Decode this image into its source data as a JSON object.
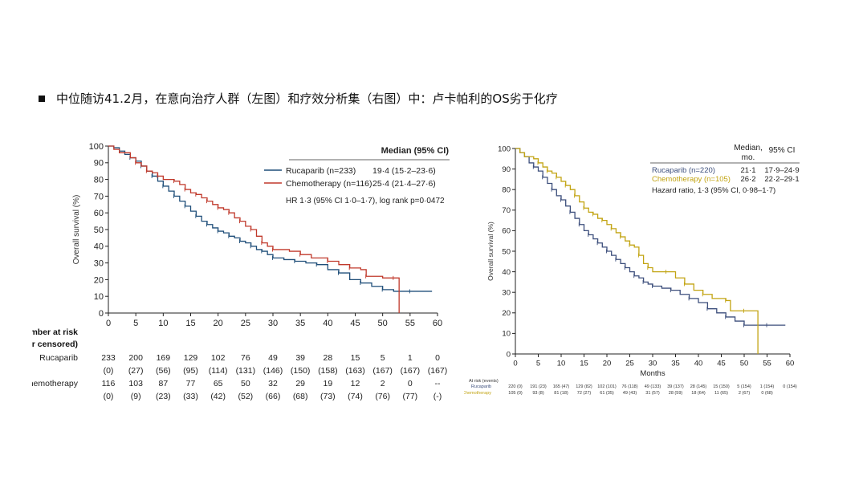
{
  "slide": {
    "title": "中位随访41.2月，在意向治疗人群（左图）和疗效分析集（右图）中：卢卡帕利的OS劣于化疗"
  },
  "chart_data": [
    {
      "type": "line",
      "subtype": "kaplan-meier",
      "panel": "left",
      "title": "",
      "xlabel": "",
      "ylabel": "Overall survival (%)",
      "xlim": [
        0,
        60
      ],
      "ylim": [
        0,
        100
      ],
      "xticks": [
        0,
        5,
        10,
        15,
        20,
        25,
        30,
        35,
        40,
        45,
        50,
        55,
        60
      ],
      "yticks": [
        0,
        10,
        20,
        30,
        40,
        50,
        60,
        70,
        80,
        90,
        100
      ],
      "legend_header": "Median (95% CI)",
      "legend_position": "top-right",
      "series": [
        {
          "name": "Rucaparib (n=233)",
          "median_ci": "19·4 (15·2–23·6)",
          "color": "#1f4e79",
          "points": [
            [
              0,
              100
            ],
            [
              1,
              99
            ],
            [
              2,
              97
            ],
            [
              3,
              95
            ],
            [
              4,
              93
            ],
            [
              5,
              91
            ],
            [
              6,
              88
            ],
            [
              7,
              85
            ],
            [
              8,
              82
            ],
            [
              9,
              79
            ],
            [
              10,
              76
            ],
            [
              11,
              73
            ],
            [
              12,
              70
            ],
            [
              13,
              67
            ],
            [
              14,
              64
            ],
            [
              15,
              61
            ],
            [
              16,
              58
            ],
            [
              17,
              55
            ],
            [
              18,
              53
            ],
            [
              19,
              51
            ],
            [
              20,
              49
            ],
            [
              21,
              48
            ],
            [
              22,
              46
            ],
            [
              23,
              45
            ],
            [
              24,
              43
            ],
            [
              25,
              42
            ],
            [
              26,
              40
            ],
            [
              27,
              38
            ],
            [
              28,
              37
            ],
            [
              29,
              35
            ],
            [
              30,
              33
            ],
            [
              32,
              32
            ],
            [
              34,
              31
            ],
            [
              36,
              30
            ],
            [
              38,
              29
            ],
            [
              40,
              26
            ],
            [
              42,
              24
            ],
            [
              44,
              20
            ],
            [
              46,
              18
            ],
            [
              48,
              16
            ],
            [
              50,
              14
            ],
            [
              52,
              13
            ],
            [
              55,
              13
            ],
            [
              59,
              13
            ]
          ]
        },
        {
          "name": "Chemotherapy (n=116)",
          "median_ci": "25·4 (21·4–27·6)",
          "color": "#c0392b",
          "points": [
            [
              0,
              100
            ],
            [
              1,
              98
            ],
            [
              2,
              96
            ],
            [
              4,
              93
            ],
            [
              5,
              90
            ],
            [
              6,
              88
            ],
            [
              7,
              85
            ],
            [
              8,
              84
            ],
            [
              9,
              82
            ],
            [
              10,
              80
            ],
            [
              12,
              79
            ],
            [
              13,
              77
            ],
            [
              14,
              74
            ],
            [
              15,
              72
            ],
            [
              16,
              71
            ],
            [
              17,
              69
            ],
            [
              18,
              67
            ],
            [
              19,
              65
            ],
            [
              20,
              63
            ],
            [
              21,
              62
            ],
            [
              22,
              60
            ],
            [
              23,
              57
            ],
            [
              24,
              55
            ],
            [
              25,
              52
            ],
            [
              26,
              50
            ],
            [
              27,
              46
            ],
            [
              28,
              42
            ],
            [
              29,
              40
            ],
            [
              30,
              38
            ],
            [
              33,
              37
            ],
            [
              35,
              35
            ],
            [
              37,
              33
            ],
            [
              40,
              31
            ],
            [
              42,
              29
            ],
            [
              44,
              27
            ],
            [
              46,
              26
            ],
            [
              47,
              22
            ],
            [
              50,
              21
            ],
            [
              52,
              21
            ],
            [
              53,
              0
            ]
          ]
        }
      ],
      "annotation": "HR 1·3 (95% CI 1·0–1·7), log rank p=0·0472",
      "risk_table": {
        "header": [
          "Number at risk",
          "(number censored)"
        ],
        "rows": [
          {
            "label": "Rucaparib",
            "at_risk": [
              "233",
              "200",
              "169",
              "129",
              "102",
              "76",
              "49",
              "39",
              "28",
              "15",
              "5",
              "1",
              "0"
            ],
            "censored": [
              "(0)",
              "(27)",
              "(56)",
              "(95)",
              "(114)",
              "(131)",
              "(146)",
              "(150)",
              "(158)",
              "(163)",
              "(167)",
              "(167)",
              "(167)"
            ]
          },
          {
            "label": "Chemotherapy",
            "at_risk": [
              "116",
              "103",
              "87",
              "77",
              "65",
              "50",
              "32",
              "29",
              "19",
              "12",
              "2",
              "0",
              "--"
            ],
            "censored": [
              "(0)",
              "(9)",
              "(23)",
              "(33)",
              "(42)",
              "(52)",
              "(66)",
              "(68)",
              "(73)",
              "(74)",
              "(76)",
              "(77)",
              "(-)"
            ]
          }
        ]
      }
    },
    {
      "type": "line",
      "subtype": "kaplan-meier",
      "panel": "right",
      "title": "",
      "xlabel": "Months",
      "ylabel": "Overall survival (%)",
      "xlim": [
        0,
        60
      ],
      "ylim": [
        0,
        100
      ],
      "xticks": [
        0,
        5,
        10,
        15,
        20,
        25,
        30,
        35,
        40,
        45,
        50,
        55,
        60
      ],
      "yticks": [
        0,
        10,
        20,
        30,
        40,
        50,
        60,
        70,
        80,
        90,
        100
      ],
      "legend_header_1": "Median,",
      "legend_header_2": "mo.",
      "legend_header_ci": "95% CI",
      "legend_position": "top-right",
      "series": [
        {
          "name": "Rucaparib (n=220)",
          "median": "21·1",
          "ci": "17·9–24·9",
          "color": "#3d4f7c",
          "points": [
            [
              0,
              100
            ],
            [
              1,
              98
            ],
            [
              2,
              96
            ],
            [
              3,
              93
            ],
            [
              4,
              91
            ],
            [
              5,
              89
            ],
            [
              6,
              86
            ],
            [
              7,
              83
            ],
            [
              8,
              80
            ],
            [
              9,
              77
            ],
            [
              10,
              75
            ],
            [
              11,
              72
            ],
            [
              12,
              69
            ],
            [
              13,
              66
            ],
            [
              14,
              63
            ],
            [
              15,
              60
            ],
            [
              16,
              58
            ],
            [
              17,
              56
            ],
            [
              18,
              54
            ],
            [
              19,
              52
            ],
            [
              20,
              50
            ],
            [
              21,
              48
            ],
            [
              22,
              46
            ],
            [
              23,
              44
            ],
            [
              24,
              42
            ],
            [
              25,
              40
            ],
            [
              26,
              38
            ],
            [
              27,
              37
            ],
            [
              28,
              35
            ],
            [
              29,
              34
            ],
            [
              30,
              33
            ],
            [
              32,
              32
            ],
            [
              34,
              31
            ],
            [
              36,
              29
            ],
            [
              38,
              27
            ],
            [
              40,
              25
            ],
            [
              42,
              22
            ],
            [
              44,
              20
            ],
            [
              46,
              18
            ],
            [
              48,
              16
            ],
            [
              50,
              14
            ],
            [
              52,
              14
            ],
            [
              55,
              14
            ],
            [
              59,
              14
            ]
          ]
        },
        {
          "name": "Chemotherapy (n=105)",
          "median": "26·2",
          "ci": "22·2–29·1",
          "color": "#c2a412",
          "points": [
            [
              0,
              100
            ],
            [
              1,
              98
            ],
            [
              2,
              96
            ],
            [
              4,
              95
            ],
            [
              5,
              93
            ],
            [
              6,
              91
            ],
            [
              7,
              89
            ],
            [
              8,
              88
            ],
            [
              9,
              86
            ],
            [
              10,
              84
            ],
            [
              11,
              82
            ],
            [
              12,
              80
            ],
            [
              13,
              77
            ],
            [
              14,
              74
            ],
            [
              15,
              71
            ],
            [
              16,
              69
            ],
            [
              17,
              68
            ],
            [
              18,
              66
            ],
            [
              19,
              65
            ],
            [
              20,
              63
            ],
            [
              21,
              61
            ],
            [
              22,
              59
            ],
            [
              23,
              57
            ],
            [
              24,
              55
            ],
            [
              25,
              53
            ],
            [
              26,
              52
            ],
            [
              27,
              48
            ],
            [
              28,
              44
            ],
            [
              29,
              42
            ],
            [
              30,
              40
            ],
            [
              33,
              40
            ],
            [
              35,
              37
            ],
            [
              37,
              34
            ],
            [
              39,
              31
            ],
            [
              41,
              29
            ],
            [
              43,
              27
            ],
            [
              46,
              26
            ],
            [
              47,
              21
            ],
            [
              50,
              21
            ],
            [
              52,
              21
            ],
            [
              53,
              0
            ]
          ]
        }
      ],
      "annotation": "Hazard ratio, 1·3 (95% CI, 0·98–1·7)",
      "risk_table": {
        "header": "At risk (events)",
        "rows": [
          {
            "label": "Rucaparib",
            "color": "#3d4f7c",
            "values": [
              "220 (0)",
              "191 (23)",
              "165 (47)",
              "129 (82)",
              "102 (101)",
              "76 (118)",
              "49 (133)",
              "39 (137)",
              "28 (145)",
              "15 (150)",
              "5 (154)",
              "1 (154)",
              "0 (154)"
            ]
          },
          {
            "label": "Chemotherapy",
            "color": "#c2a412",
            "values": [
              "105 (0)",
              "93 (8)",
              "81 (18)",
              "72 (27)",
              "61 (35)",
              "49 (43)",
              "31 (57)",
              "28 (59)",
              "18 (64)",
              "11 (65)",
              "2 (67)",
              "0 (68)",
              ""
            ]
          }
        ]
      }
    }
  ]
}
